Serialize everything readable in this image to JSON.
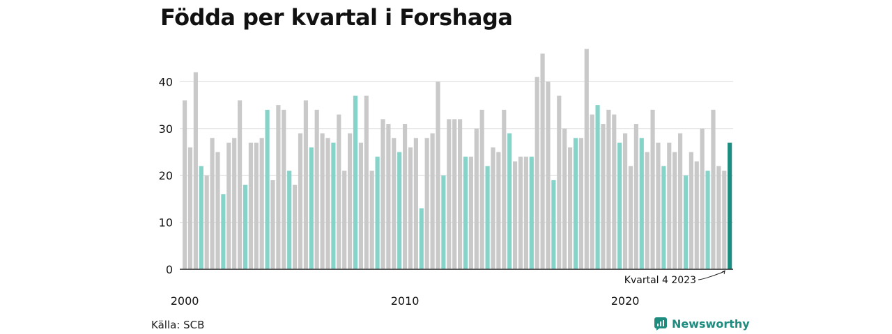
{
  "title": "Födda per kvartal i Forshaga",
  "source": "Källa: SCB",
  "brand": {
    "name": "Newsworthy",
    "icon": "newsworthy-logo-icon"
  },
  "colors": {
    "bar_default": "#c9c9c9",
    "bar_q4": "#86d3c9",
    "bar_latest": "#1d8d7f",
    "grid": "#dddddd",
    "axis": "#222222",
    "text": "#111111"
  },
  "chart_data": {
    "type": "bar",
    "title": "Födda per kvartal i Forshaga",
    "xlabel": "",
    "ylabel": "",
    "ylim": [
      0,
      50
    ],
    "yticks": [
      0,
      10,
      20,
      30,
      40
    ],
    "grid": true,
    "xticks": [
      {
        "label": "2000",
        "index": 0
      },
      {
        "label": "2010",
        "index": 40
      },
      {
        "label": "2020",
        "index": 80
      }
    ],
    "annotation": {
      "text": "Kvartal 4 2023",
      "index": 99
    },
    "highlight_rule": "every fourth quarter (Q4) highlighted, last bar emphasized",
    "values": [
      36,
      26,
      42,
      22,
      20,
      28,
      25,
      16,
      27,
      28,
      36,
      18,
      27,
      27,
      28,
      34,
      19,
      35,
      34,
      21,
      18,
      29,
      36,
      26,
      34,
      29,
      28,
      27,
      33,
      21,
      29,
      37,
      27,
      37,
      21,
      24,
      32,
      31,
      28,
      25,
      31,
      26,
      28,
      13,
      28,
      29,
      40,
      20,
      32,
      32,
      32,
      24,
      24,
      30,
      34,
      22,
      26,
      25,
      34,
      29,
      23,
      24,
      24,
      24,
      41,
      46,
      40,
      19,
      37,
      30,
      26,
      28,
      28,
      47,
      33,
      35,
      31,
      34,
      33,
      27,
      29,
      22,
      31,
      28,
      25,
      34,
      27,
      22,
      27,
      25,
      29,
      20,
      25,
      23,
      30,
      21,
      34,
      22,
      21,
      27
    ]
  }
}
